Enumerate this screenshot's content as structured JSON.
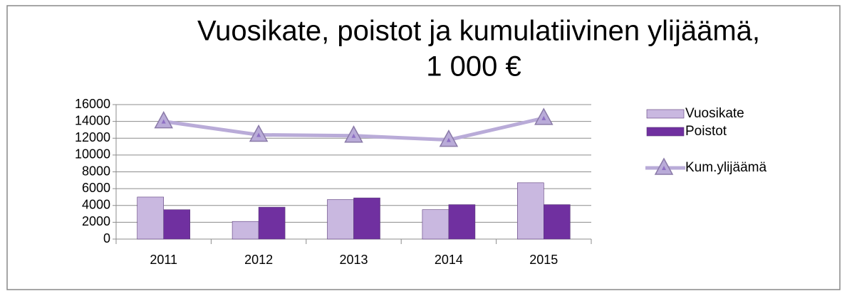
{
  "chart_data": {
    "type": "bar_line",
    "title": [
      "Vuosikate, poistot ja kumulatiivinen ylijäämä,",
      "1 000 €"
    ],
    "categories": [
      "2011",
      "2012",
      "2013",
      "2014",
      "2015"
    ],
    "series": [
      {
        "name": "Vuosikate",
        "color": "#c9b8e0",
        "type": "bar",
        "values": [
          5000,
          2100,
          4700,
          3500,
          6700
        ]
      },
      {
        "name": "Poistot",
        "color": "#7030a0",
        "type": "bar",
        "values": [
          3500,
          3800,
          4900,
          4100,
          4100
        ]
      },
      {
        "name": "Kum.ylijäämä",
        "color": "#b9abd8",
        "type": "line",
        "values": [
          14000,
          12400,
          12300,
          11800,
          14400
        ]
      }
    ],
    "ylim": [
      0,
      16000
    ],
    "yticks": [
      0,
      2000,
      4000,
      6000,
      8000,
      10000,
      12000,
      14000,
      16000
    ],
    "grid": true,
    "legend": "right"
  }
}
